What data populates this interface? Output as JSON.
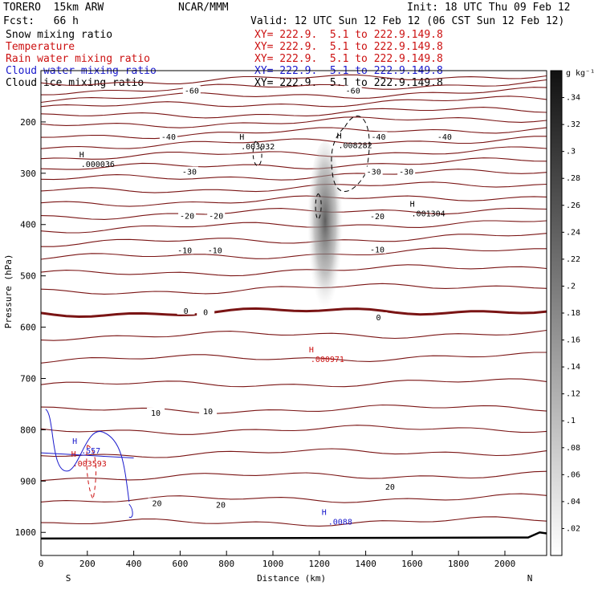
{
  "header": {
    "title": "TORERO  15km ARW",
    "center": "NCAR/MMM",
    "init": "Init: 18 UTC Thu 09 Feb 12",
    "fcst": "Fcst:   66 h",
    "valid": "Valid: 12 UTC Sun 12 Feb 12 (06 CST Sun 12 Feb 12)"
  },
  "legend": [
    {
      "label": "Snow mixing ratio",
      "xy": "XY= 222.9.  5.1 to 222.9.149.8",
      "color": "#000000"
    },
    {
      "label": "Temperature",
      "xy": "XY= 222.9.  5.1 to 222.9.149.8",
      "color": "#cc1111"
    },
    {
      "label": "Rain water mixing ratio",
      "xy": "XY= 222.9.  5.1 to 222.9.149.8",
      "color": "#cc1111"
    },
    {
      "label": "Cloud water mixing ratio",
      "xy": "XY= 222.9.  5.1 to 222.9.149.8",
      "color": "#1a1acc"
    },
    {
      "label": "Cloud ice mixing ratio",
      "xy": "XY= 222.9.  5.1 to 222.9.149.8",
      "color": "#000000"
    }
  ],
  "chart_data": {
    "type": "line",
    "xlabel": "Distance (km)",
    "ylabel": "Pressure (hPa)",
    "xlim": [
      0,
      2180
    ],
    "ylim": [
      1045,
      100
    ],
    "x_ticks": [
      0,
      200,
      400,
      600,
      800,
      1000,
      1200,
      1400,
      1600,
      1800,
      2000
    ],
    "y_ticks": [
      200,
      300,
      400,
      500,
      600,
      700,
      800,
      900,
      1000
    ],
    "left_end_label": "S",
    "right_end_label": "N",
    "colorbar": {
      "unit": "g kg⁻¹",
      "ticks": [
        ".02",
        ".04",
        ".06",
        ".08",
        ".1",
        ".12",
        ".14",
        ".16",
        ".18",
        ".2",
        ".22",
        ".24",
        ".26",
        ".28",
        ".3",
        ".32",
        ".34"
      ]
    },
    "temperature_isotherms_hPa": [
      {
        "level": 116
      },
      {
        "level": 132
      },
      {
        "level": 148
      },
      {
        "level": 164
      },
      {
        "level": 183
      },
      {
        "level": 200
      },
      {
        "level": 220
      },
      {
        "level": 240
      },
      {
        "level": 262
      },
      {
        "level": 284
      },
      {
        "level": 305
      },
      {
        "level": 328
      },
      {
        "level": 352
      },
      {
        "level": 376
      },
      {
        "level": 402
      },
      {
        "level": 430
      },
      {
        "level": 458
      },
      {
        "level": 490
      },
      {
        "level": 525
      },
      {
        "level": 570,
        "bold": true
      },
      {
        "level": 615
      },
      {
        "level": 660
      },
      {
        "level": 710
      },
      {
        "level": 760
      },
      {
        "level": 800
      },
      {
        "level": 845
      },
      {
        "level": 890
      },
      {
        "level": 935
      },
      {
        "level": 980
      }
    ],
    "temperature_labels": [
      {
        "text": "-60",
        "x": 650,
        "p": 140
      },
      {
        "text": "-60",
        "x": 1345,
        "p": 140
      },
      {
        "text": "-40",
        "x": 550,
        "p": 230
      },
      {
        "text": "-40",
        "x": 1455,
        "p": 230
      },
      {
        "text": "-40",
        "x": 1740,
        "p": 230
      },
      {
        "text": "-30",
        "x": 640,
        "p": 298
      },
      {
        "text": "-30",
        "x": 1435,
        "p": 298
      },
      {
        "text": "-30",
        "x": 1575,
        "p": 298
      },
      {
        "text": "-20",
        "x": 630,
        "p": 384
      },
      {
        "text": "-20",
        "x": 755,
        "p": 384
      },
      {
        "text": "-20",
        "x": 1450,
        "p": 385
      },
      {
        "text": "-10",
        "x": 620,
        "p": 451
      },
      {
        "text": "-10",
        "x": 750,
        "p": 451
      },
      {
        "text": "-10",
        "x": 1450,
        "p": 450
      },
      {
        "text": "0",
        "x": 625,
        "p": 569
      },
      {
        "text": "0",
        "x": 710,
        "p": 572
      },
      {
        "text": "0",
        "x": 1455,
        "p": 582
      },
      {
        "text": "10",
        "x": 495,
        "p": 768
      },
      {
        "text": "10",
        "x": 720,
        "p": 765
      },
      {
        "text": "20",
        "x": 500,
        "p": 944
      },
      {
        "text": "20",
        "x": 775,
        "p": 947
      },
      {
        "text": "20",
        "x": 1505,
        "p": 912
      }
    ],
    "maxima": [
      {
        "text": ".000036",
        "x": 245,
        "p": 285,
        "color": "#000000"
      },
      {
        "text": ".003932",
        "x": 935,
        "p": 250,
        "color": "#000000"
      },
      {
        "text": ".008282",
        "x": 1355,
        "p": 248,
        "color": "#000000"
      },
      {
        "text": ".001304",
        "x": 1670,
        "p": 381,
        "color": "#000000"
      },
      {
        "text": ".000971",
        "x": 1235,
        "p": 665,
        "color": "#cc1111"
      },
      {
        "text": ".557",
        "x": 215,
        "p": 843,
        "color": "#1a1acc"
      },
      {
        "text": ".003593",
        "x": 210,
        "p": 868,
        "color": "#cc1111"
      },
      {
        "text": ".0088",
        "x": 1290,
        "p": 982,
        "color": "#1a1acc"
      }
    ]
  }
}
